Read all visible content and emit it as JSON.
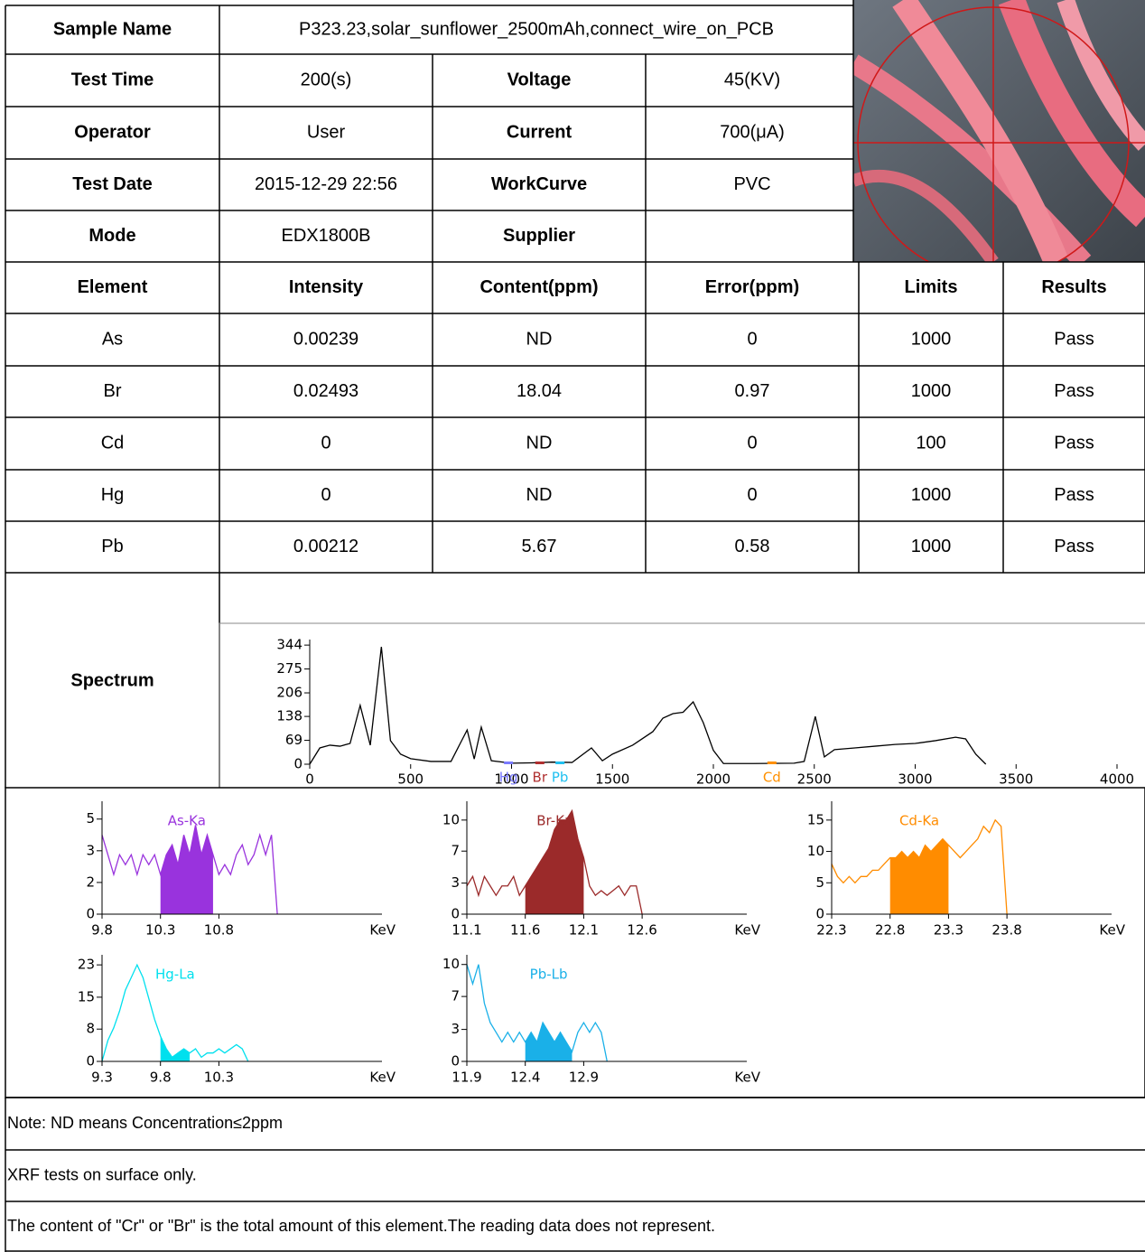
{
  "header": {
    "rows": [
      [
        "Sample Name",
        "P323.23,solar_sunflower_2500mAh,connect_wire_on_PCB"
      ],
      [
        "Test Time",
        "200(s)",
        "Voltage",
        "45(KV)"
      ],
      [
        "Operator",
        "User",
        "Current",
        "700(μA)"
      ],
      [
        "Test Date",
        "2015-12-29 22:56",
        "WorkCurve",
        "PVC"
      ],
      [
        "Mode",
        "EDX1800B",
        "Supplier"
      ]
    ]
  },
  "table": {
    "columns": [
      "Element",
      "Intensity",
      "Content(ppm)",
      "Error(ppm)",
      "Limits",
      "Results"
    ],
    "rows": [
      [
        "As",
        "0.00239",
        "ND",
        "0",
        "1000",
        "Pass"
      ],
      [
        "Br",
        "0.02493",
        "18.04",
        "0.97",
        "1000",
        "Pass"
      ],
      [
        "Cd",
        "0",
        "ND",
        "0",
        "100",
        "Pass"
      ],
      [
        "Hg",
        "0",
        "ND",
        "0",
        "1000",
        "Pass"
      ],
      [
        "Pb",
        "0.00212",
        "5.67",
        "0.58",
        "1000",
        "Pass"
      ]
    ]
  },
  "spectrum": {
    "label": "Spectrum",
    "chart": {
      "type": "line",
      "x": [
        0,
        50,
        100,
        150,
        200,
        250,
        300,
        355,
        400,
        450,
        500,
        600,
        700,
        780,
        815,
        850,
        900,
        1000,
        1100,
        1200,
        1300,
        1396,
        1450,
        1500,
        1600,
        1700,
        1750,
        1800,
        1850,
        1900,
        1950,
        2000,
        2050,
        2200,
        2400,
        2450,
        2505,
        2550,
        2600,
        2700,
        2800,
        2900,
        3000,
        3100,
        3200,
        3250,
        3300,
        3350
      ],
      "values": [
        0,
        47,
        55,
        52,
        60,
        170,
        55,
        339,
        68,
        29,
        16,
        8,
        8,
        99,
        15,
        107,
        10,
        3,
        4,
        6,
        5,
        47,
        10,
        29,
        55,
        94,
        133,
        146,
        150,
        180,
        120,
        40,
        2,
        2,
        3,
        8,
        138,
        21,
        42,
        47,
        52,
        57,
        60,
        68,
        78,
        73,
        29,
        0
      ],
      "color": "#000000",
      "xlim": [
        0,
        4100
      ],
      "xticks": [
        0,
        500,
        1000,
        1500,
        2000,
        2500,
        3000,
        3500,
        4000
      ],
      "ylim": [
        0,
        360
      ],
      "yticks": [
        0,
        69,
        138,
        206,
        275,
        344
      ],
      "markers": [
        {
          "label": "Hg",
          "x": 985,
          "color": "#7b7bff"
        },
        {
          "label": "Br",
          "x": 1140,
          "color": "#b03030"
        },
        {
          "label": "Pb",
          "x": 1240,
          "color": "#20c0f0"
        },
        {
          "label": "Cd",
          "x": 2290,
          "color": "#ff9000"
        }
      ]
    }
  },
  "element_charts": [
    {
      "type": "line",
      "label": "As-Ka",
      "color": "#9933dd",
      "unit": "KeV",
      "x": [
        9.8,
        9.85,
        9.9,
        9.95,
        10,
        10.05,
        10.1,
        10.15,
        10.2,
        10.25,
        10.3,
        10.35,
        10.4,
        10.45,
        10.5,
        10.55,
        10.6,
        10.65,
        10.7,
        10.75,
        10.8,
        10.85,
        10.9,
        10.95,
        11,
        11.05,
        11.1,
        11.15,
        11.2,
        11.25,
        11.3
      ],
      "values": [
        4,
        3,
        2,
        3,
        2.5,
        3,
        2,
        3,
        2.5,
        3,
        2,
        3,
        3.5,
        2.5,
        4,
        3,
        4.5,
        3,
        4,
        3,
        2,
        2.5,
        2,
        3,
        3.5,
        2.5,
        3,
        4,
        3,
        4,
        0
      ],
      "highlight": [
        10.3,
        10.75
      ],
      "xlim": [
        9.8,
        12.35
      ],
      "xticks": [
        9.8,
        10.3,
        10.8
      ],
      "ylim": [
        0,
        5.7
      ],
      "yticks": [
        0,
        {
          "value": 1.6,
          "label": "2"
        },
        {
          "value": 3.2,
          "label": "3"
        },
        {
          "value": 4.8,
          "label": "5"
        }
      ]
    },
    {
      "type": "line",
      "label": "Br-Ka",
      "color": "#9b2a2a",
      "unit": "KeV",
      "x": [
        11.1,
        11.15,
        11.2,
        11.25,
        11.3,
        11.35,
        11.4,
        11.45,
        11.5,
        11.55,
        11.6,
        11.65,
        11.7,
        11.75,
        11.8,
        11.85,
        11.9,
        11.95,
        12,
        12.05,
        12.1,
        12.15,
        12.2,
        12.25,
        12.3,
        12.35,
        12.4,
        12.45,
        12.5,
        12.55,
        12.6
      ],
      "values": [
        3,
        4,
        2,
        4,
        3,
        2,
        3,
        3,
        4,
        2,
        3,
        4,
        5,
        6,
        7,
        9,
        10,
        10,
        11,
        8,
        6,
        3,
        2,
        2.5,
        2,
        2.5,
        3,
        2,
        3,
        3,
        0
      ],
      "highlight": [
        11.6,
        12.1
      ],
      "xlim": [
        11.1,
        13.65
      ],
      "xticks": [
        11.1,
        11.6,
        12.1,
        12.6
      ],
      "ylim": [
        0,
        12
      ],
      "yticks": [
        0,
        {
          "value": 3.3,
          "label": "3"
        },
        {
          "value": 6.7,
          "label": "7"
        },
        10
      ]
    },
    {
      "type": "line",
      "label": "Cd-Ka",
      "color": "#ff8c00",
      "unit": "KeV",
      "x": [
        22.3,
        22.35,
        22.4,
        22.45,
        22.5,
        22.55,
        22.6,
        22.65,
        22.7,
        22.75,
        22.8,
        22.85,
        22.9,
        22.95,
        23,
        23.05,
        23.1,
        23.15,
        23.2,
        23.25,
        23.3,
        23.35,
        23.4,
        23.45,
        23.5,
        23.55,
        23.6,
        23.65,
        23.7,
        23.75,
        23.8
      ],
      "values": [
        8,
        6,
        5,
        6,
        5,
        6,
        6,
        7,
        7,
        8,
        9,
        9,
        10,
        9,
        10,
        9,
        11,
        10,
        11,
        12,
        11,
        10,
        9,
        10,
        11,
        12,
        14,
        13,
        15,
        14,
        0
      ],
      "highlight": [
        22.8,
        23.3
      ],
      "xlim": [
        22.3,
        24.85
      ],
      "xticks": [
        22.3,
        22.8,
        23.3,
        23.8
      ],
      "ylim": [
        0,
        18
      ],
      "yticks": [
        0,
        5,
        10,
        15
      ]
    },
    {
      "type": "line",
      "label": "Hg-La",
      "color": "#00e0ee",
      "unit": "KeV",
      "x": [
        9.3,
        9.35,
        9.4,
        9.45,
        9.5,
        9.55,
        9.6,
        9.65,
        9.7,
        9.75,
        9.8,
        9.85,
        9.9,
        9.95,
        10,
        10.05,
        10.1,
        10.15,
        10.2,
        10.25,
        10.3,
        10.35,
        10.4,
        10.45,
        10.5,
        10.55
      ],
      "values": [
        0,
        5,
        8,
        12,
        17,
        20,
        23,
        20,
        15,
        10,
        6,
        3,
        1,
        2,
        3,
        2,
        3,
        1,
        2,
        2,
        3,
        2,
        3,
        4,
        3,
        0
      ],
      "highlight": [
        9.8,
        10.05
      ],
      "xlim": [
        9.3,
        11.85
      ],
      "xticks": [
        9.3,
        9.8,
        10.3
      ],
      "ylim": [
        0,
        25.4
      ],
      "yticks": [
        0,
        {
          "value": 7.7,
          "label": "8"
        },
        {
          "value": 15.3,
          "label": "15"
        },
        23
      ]
    },
    {
      "type": "line",
      "label": "Pb-Lb",
      "color": "#1ab0e8",
      "unit": "KeV",
      "x": [
        11.9,
        11.95,
        12,
        12.05,
        12.1,
        12.15,
        12.2,
        12.25,
        12.3,
        12.35,
        12.4,
        12.45,
        12.5,
        12.55,
        12.6,
        12.65,
        12.7,
        12.75,
        12.8,
        12.85,
        12.9,
        12.95,
        13,
        13.05,
        13.1
      ],
      "values": [
        10,
        8,
        10,
        6,
        4,
        3,
        2,
        3,
        2,
        3,
        2,
        3,
        2,
        4,
        3,
        2,
        3,
        2,
        1,
        3,
        4,
        3,
        4,
        3,
        0
      ],
      "highlight": [
        12.4,
        12.8
      ],
      "xlim": [
        11.9,
        14.45
      ],
      "xticks": [
        11.9,
        12.4,
        12.9
      ],
      "ylim": [
        0,
        11
      ],
      "yticks": [
        0,
        {
          "value": 3.3,
          "label": "3"
        },
        {
          "value": 6.7,
          "label": "7"
        },
        10
      ]
    }
  ],
  "notes": [
    "Note: ND means Concentration≤2ppm",
    "XRF tests on surface only.",
    "The content of \"Cr\" or \"Br\" is the total amount of this element.The reading data does not represent."
  ]
}
